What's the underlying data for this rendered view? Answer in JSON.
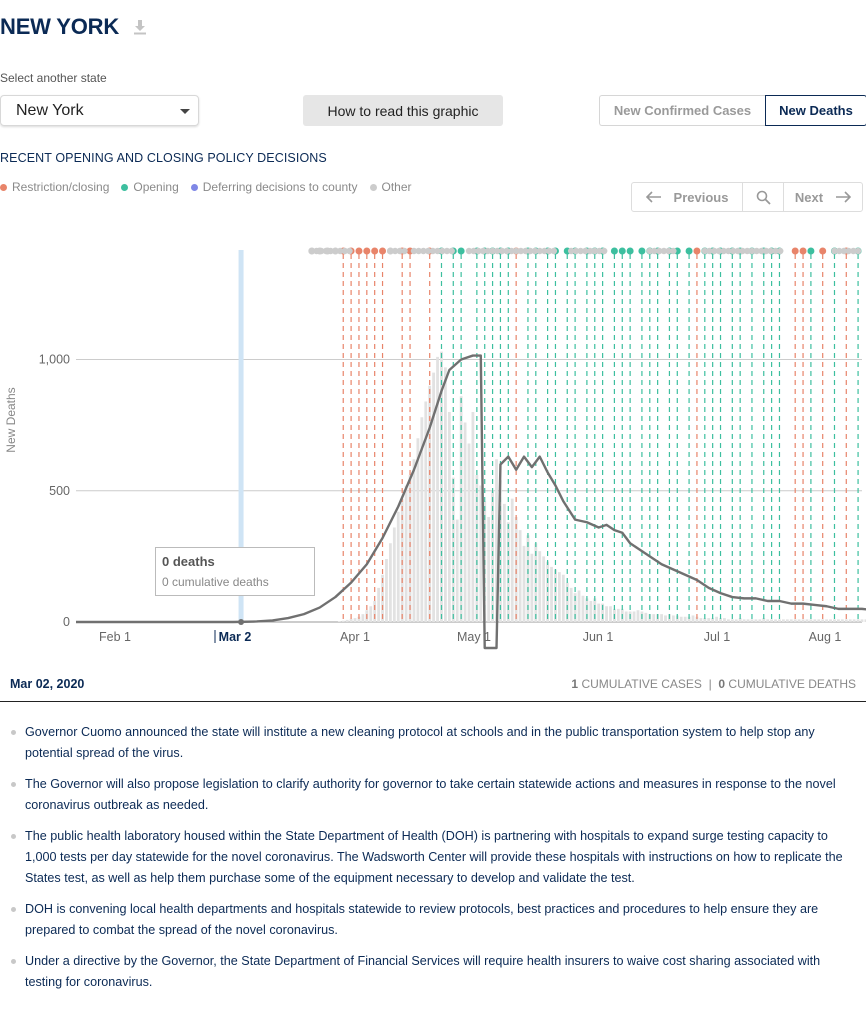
{
  "header": {
    "state_title": "NEW YORK",
    "download_icon": "download-icon"
  },
  "state_select": {
    "label": "Select another state",
    "value": "New York"
  },
  "how_to_read_label": "How to read this graphic",
  "metric_toggle": {
    "cases_label": "New Confirmed Cases",
    "deaths_label": "New Deaths",
    "selected": "New Deaths"
  },
  "policy": {
    "title": "RECENT OPENING AND CLOSING POLICY DECISIONS",
    "legend": [
      {
        "label": "Restriction/closing",
        "color": "#e8846a"
      },
      {
        "label": "Opening",
        "color": "#3dbf9f"
      },
      {
        "label": "Deferring decisions to county",
        "color": "#7f87e6"
      },
      {
        "label": "Other",
        "color": "#cccccc"
      }
    ]
  },
  "nav": {
    "previous_label": "Previous",
    "next_label": "Next",
    "search_icon": "search-icon"
  },
  "chart_data": {
    "type": "bar",
    "ylabel": "New Deaths",
    "ylim": [
      0,
      1100
    ],
    "yticks": [
      0,
      500,
      1000
    ],
    "ytick_labels": [
      "0",
      "500",
      "1,000"
    ],
    "xtick_labels": [
      "Feb 1",
      "Mar 2",
      "Apr 1",
      "May 1",
      "Jun 1",
      "Jul 1",
      "Aug 1"
    ],
    "selected_date": "Mar 2",
    "bar_series": {
      "name": "Daily new deaths",
      "start_day_index": 42,
      "values": [
        0,
        0,
        0,
        0,
        0,
        0,
        0,
        0,
        0,
        0,
        0,
        0,
        0,
        0,
        0,
        0,
        0,
        0,
        0,
        0,
        0,
        0,
        0,
        0,
        0,
        3,
        5,
        8,
        12,
        15,
        20,
        30,
        45,
        60,
        80,
        130,
        180,
        240,
        300,
        360,
        420,
        470,
        520,
        560,
        620,
        700,
        780,
        840,
        900,
        950,
        1010,
        1030,
        970,
        800,
        550,
        390,
        860,
        760,
        680,
        800,
        560,
        520,
        460,
        400,
        500,
        620,
        540,
        450,
        380,
        470,
        400,
        350,
        290,
        330,
        260,
        300,
        270,
        250,
        230,
        210,
        200,
        190,
        180,
        150,
        130,
        110,
        120,
        100,
        90,
        80,
        90,
        70,
        70,
        60,
        60,
        50,
        50,
        50,
        40,
        40,
        40,
        45,
        40,
        35,
        30,
        30,
        30,
        30,
        25,
        30,
        25,
        25,
        20,
        20,
        20,
        25,
        20,
        15,
        15,
        15,
        15,
        20,
        15,
        15,
        10,
        10,
        10,
        15,
        10,
        10,
        10,
        10,
        10,
        15,
        10,
        10,
        10,
        10,
        10,
        10,
        10,
        10,
        10,
        10,
        10,
        10,
        10,
        10,
        10,
        10,
        10,
        10,
        10,
        10,
        10,
        10,
        10,
        10,
        10,
        10,
        10,
        10,
        10,
        10,
        10,
        10,
        10,
        10,
        10
      ]
    },
    "line_series": {
      "name": "7-day average",
      "points": [
        [
          20,
          0
        ],
        [
          60,
          0
        ],
        [
          66,
          2
        ],
        [
          70,
          6
        ],
        [
          74,
          15
        ],
        [
          78,
          30
        ],
        [
          82,
          55
        ],
        [
          86,
          95
        ],
        [
          90,
          150
        ],
        [
          94,
          220
        ],
        [
          98,
          320
        ],
        [
          102,
          440
        ],
        [
          106,
          580
        ],
        [
          110,
          740
        ],
        [
          113,
          880
        ],
        [
          115,
          960
        ],
        [
          118,
          1000
        ],
        [
          121,
          1015
        ],
        [
          123,
          1015
        ],
        [
          124,
          -100
        ],
        [
          127,
          -100
        ],
        [
          128,
          600
        ],
        [
          130,
          630
        ],
        [
          132,
          580
        ],
        [
          134,
          630
        ],
        [
          136,
          590
        ],
        [
          138,
          630
        ],
        [
          140,
          570
        ],
        [
          142,
          520
        ],
        [
          144,
          460
        ],
        [
          147,
          390
        ],
        [
          150,
          380
        ],
        [
          153,
          360
        ],
        [
          155,
          370
        ],
        [
          157,
          350
        ],
        [
          159,
          340
        ],
        [
          161,
          300
        ],
        [
          163,
          280
        ],
        [
          166,
          250
        ],
        [
          169,
          220
        ],
        [
          172,
          200
        ],
        [
          175,
          180
        ],
        [
          178,
          160
        ],
        [
          181,
          130
        ],
        [
          184,
          110
        ],
        [
          187,
          95
        ],
        [
          190,
          90
        ],
        [
          193,
          90
        ],
        [
          196,
          80
        ],
        [
          199,
          80
        ],
        [
          202,
          70
        ],
        [
          205,
          70
        ],
        [
          208,
          65
        ],
        [
          211,
          60
        ],
        [
          214,
          50
        ],
        [
          217,
          50
        ],
        [
          220,
          50
        ],
        [
          223,
          45
        ],
        [
          226,
          48
        ],
        [
          229,
          45
        ],
        [
          232,
          50
        ],
        [
          235,
          45
        ],
        [
          238,
          45
        ],
        [
          241,
          45
        ],
        [
          244,
          40
        ],
        [
          247,
          35
        ],
        [
          250,
          30
        ],
        [
          253,
          25
        ],
        [
          256,
          22
        ],
        [
          259,
          20
        ],
        [
          262,
          15
        ],
        [
          265,
          18
        ],
        [
          268,
          15
        ],
        [
          271,
          15
        ],
        [
          274,
          12
        ],
        [
          277,
          120
        ],
        [
          280,
          118
        ],
        [
          283,
          120
        ],
        [
          286,
          120
        ],
        [
          289,
          118
        ],
        [
          292,
          120
        ],
        [
          294,
          25
        ],
        [
          297,
          20
        ],
        [
          300,
          18
        ],
        [
          303,
          15
        ],
        [
          306,
          15
        ],
        [
          309,
          12
        ],
        [
          312,
          12
        ],
        [
          315,
          10
        ],
        [
          318,
          10
        ],
        [
          321,
          10
        ],
        [
          324,
          12
        ],
        [
          327,
          10
        ],
        [
          330,
          10
        ],
        [
          333,
          10
        ],
        [
          336,
          10
        ],
        [
          339,
          8
        ],
        [
          342,
          8
        ],
        [
          345,
          8
        ],
        [
          348,
          7
        ],
        [
          350,
          10
        ]
      ]
    },
    "policy_events": [
      {
        "day": 60,
        "type": "other"
      },
      {
        "day": 62,
        "type": "other"
      },
      {
        "day": 64,
        "type": "other"
      },
      {
        "day": 66,
        "type": "other"
      },
      {
        "day": 68,
        "type": "restriction"
      },
      {
        "day": 70,
        "type": "restriction"
      },
      {
        "day": 72,
        "type": "restriction"
      },
      {
        "day": 74,
        "type": "restriction"
      },
      {
        "day": 76,
        "type": "restriction"
      },
      {
        "day": 78,
        "type": "restriction"
      },
      {
        "day": 80,
        "type": "other"
      },
      {
        "day": 83,
        "type": "restriction"
      },
      {
        "day": 85,
        "type": "restriction"
      },
      {
        "day": 90,
        "type": "restriction"
      },
      {
        "day": 93,
        "type": "opening"
      },
      {
        "day": 96,
        "type": "opening"
      },
      {
        "day": 98,
        "type": "opening"
      },
      {
        "day": 102,
        "type": "opening"
      },
      {
        "day": 104,
        "type": "opening"
      },
      {
        "day": 106,
        "type": "opening"
      },
      {
        "day": 108,
        "type": "opening"
      },
      {
        "day": 110,
        "type": "opening"
      },
      {
        "day": 112,
        "type": "restriction"
      },
      {
        "day": 115,
        "type": "opening"
      },
      {
        "day": 117,
        "type": "opening"
      },
      {
        "day": 120,
        "type": "opening"
      },
      {
        "day": 122,
        "type": "opening"
      },
      {
        "day": 125,
        "type": "opening"
      },
      {
        "day": 127,
        "type": "opening"
      },
      {
        "day": 130,
        "type": "opening"
      },
      {
        "day": 132,
        "type": "opening"
      },
      {
        "day": 134,
        "type": "opening"
      },
      {
        "day": 137,
        "type": "opening"
      },
      {
        "day": 139,
        "type": "opening"
      },
      {
        "day": 141,
        "type": "opening"
      },
      {
        "day": 144,
        "type": "opening"
      },
      {
        "day": 146,
        "type": "opening"
      },
      {
        "day": 148,
        "type": "opening"
      },
      {
        "day": 151,
        "type": "opening"
      },
      {
        "day": 153,
        "type": "opening"
      },
      {
        "day": 156,
        "type": "opening"
      },
      {
        "day": 158,
        "type": "restriction"
      },
      {
        "day": 160,
        "type": "opening"
      },
      {
        "day": 162,
        "type": "opening"
      },
      {
        "day": 164,
        "type": "opening"
      },
      {
        "day": 167,
        "type": "opening"
      },
      {
        "day": 169,
        "type": "opening"
      },
      {
        "day": 172,
        "type": "opening"
      },
      {
        "day": 175,
        "type": "opening"
      },
      {
        "day": 177,
        "type": "opening"
      },
      {
        "day": 179,
        "type": "opening"
      },
      {
        "day": 183,
        "type": "restriction"
      },
      {
        "day": 185,
        "type": "restriction"
      },
      {
        "day": 187,
        "type": "opening"
      },
      {
        "day": 190,
        "type": "restriction"
      },
      {
        "day": 193,
        "type": "opening"
      },
      {
        "day": 196,
        "type": "restriction"
      },
      {
        "day": 199,
        "type": "opening"
      },
      {
        "day": 203,
        "type": "restriction"
      },
      {
        "day": 207,
        "type": "opening"
      },
      {
        "day": 212,
        "type": "restriction"
      }
    ]
  },
  "tooltip": {
    "deaths": "0 deaths",
    "cumulative": "0 cumulative deaths"
  },
  "date_bar": {
    "date": "Mar 02, 2020",
    "cum_cases_value": "1",
    "cum_cases_label": "CUMULATIVE CASES",
    "separator": "|",
    "cum_deaths_value": "0",
    "cum_deaths_label": "CUMULATIVE DEATHS"
  },
  "notes": [
    "Governor Cuomo announced the state will institute a new cleaning protocol at schools and in the public transportation system to help stop any potential spread of the virus.",
    "The Governor will also propose legislation to clarify authority for governor to take certain statewide actions and measures in response to the novel coronavirus outbreak as needed.",
    "The public health laboratory housed within the State Department of Health (DOH) is partnering with hospitals to expand surge testing capacity to 1,000 tests per day statewide for the novel coronavirus. The Wadsworth Center will provide these hospitals with instructions on how to replicate the States test, as well as help them purchase some of the equipment necessary to develop and validate the test.",
    "DOH is convening local health departments and hospitals statewide to review protocols, best practices and procedures to help ensure they are prepared to combat the spread of the novel coronavirus.",
    "Under a directive by the Governor, the State Department of Financial Services will require health insurers to waive cost sharing associated with testing for coronavirus."
  ]
}
